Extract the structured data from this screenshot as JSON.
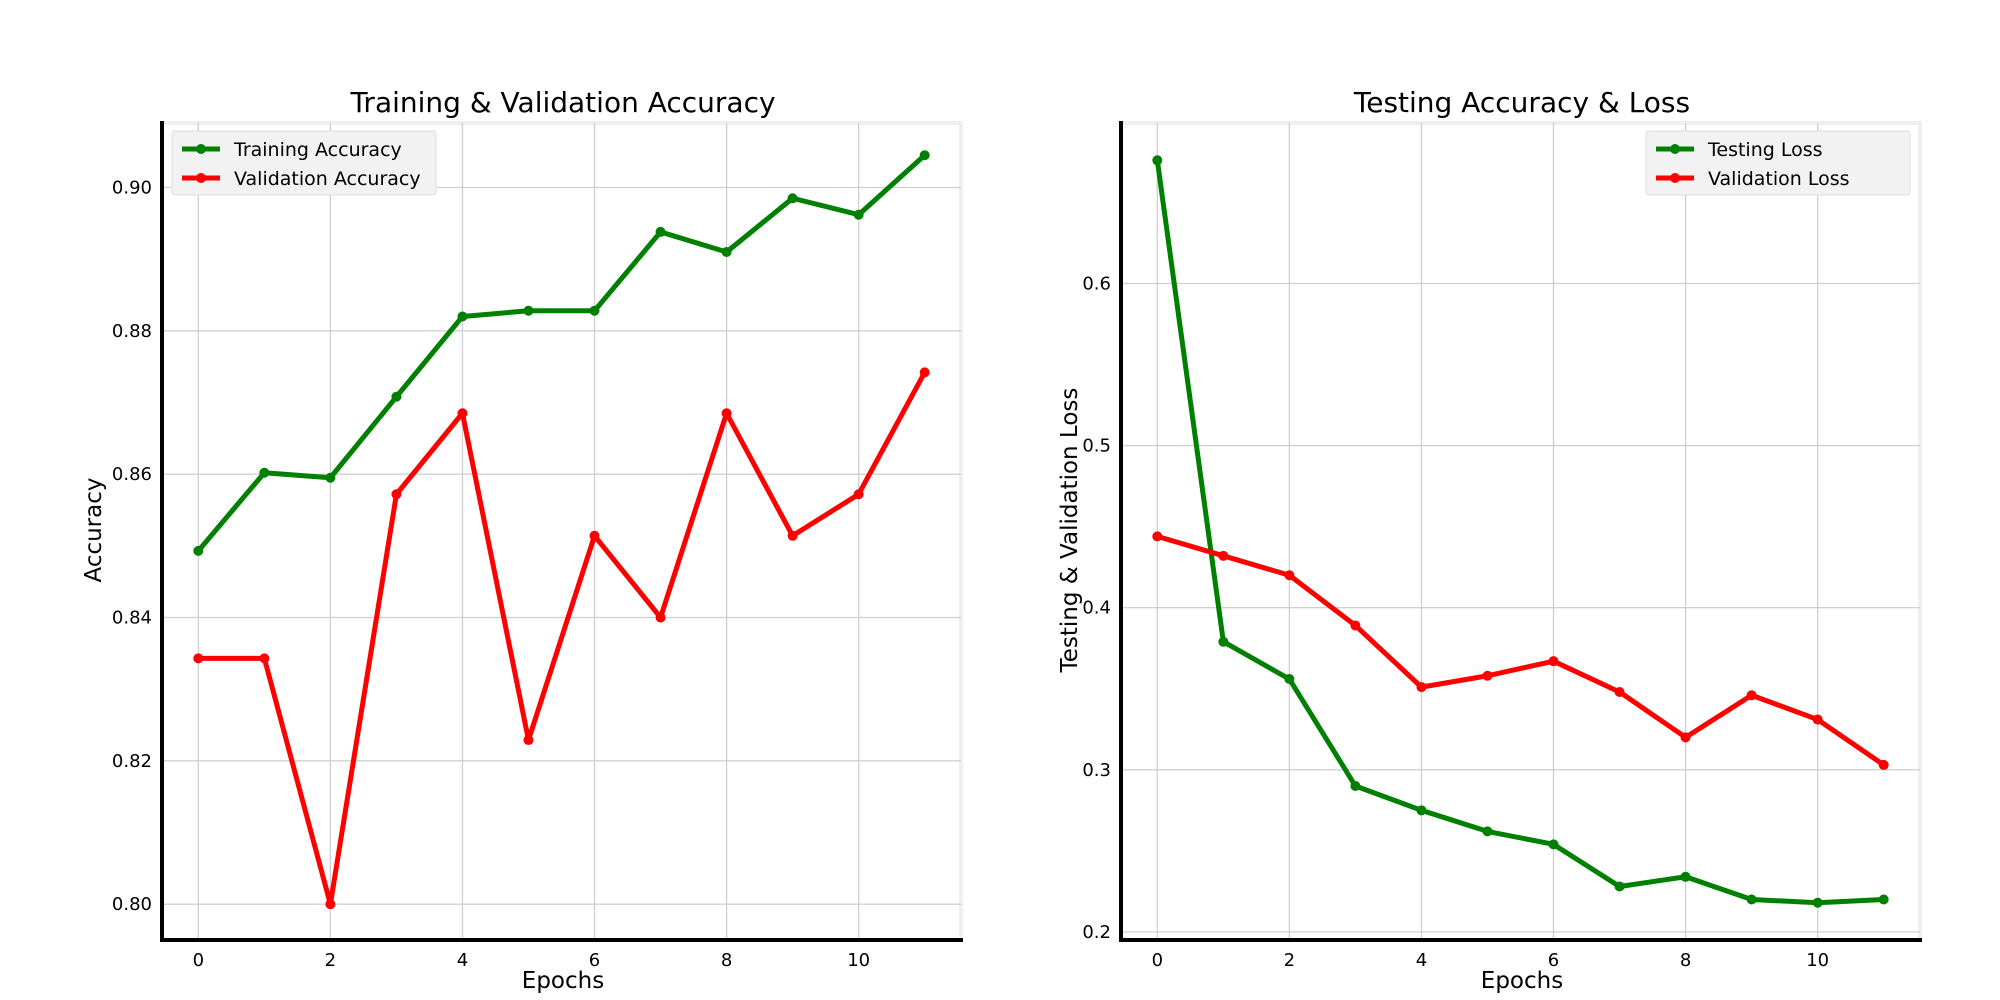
{
  "chart_data": [
    {
      "type": "line",
      "title": "Training & Validation Accuracy",
      "xlabel": "Epochs",
      "ylabel": "Accuracy",
      "x": [
        0,
        1,
        2,
        3,
        4,
        5,
        6,
        7,
        8,
        9,
        10,
        11
      ],
      "xlim": [
        -0.55,
        11.55
      ],
      "ylim": [
        0.795,
        0.909
      ],
      "xticks": [
        0,
        2,
        4,
        6,
        8,
        10
      ],
      "yticks": [
        0.8,
        0.82,
        0.84,
        0.86,
        0.88,
        0.9
      ],
      "ytick_labels": [
        "0.80",
        "0.82",
        "0.84",
        "0.86",
        "0.88",
        "0.90"
      ],
      "grid": true,
      "legend": "top-left",
      "series": [
        {
          "name": "Training Accuracy",
          "color": "#008000",
          "values": [
            0.8493,
            0.8602,
            0.8595,
            0.8708,
            0.882,
            0.8828,
            0.8828,
            0.8938,
            0.891,
            0.8985,
            0.8962,
            0.9045
          ]
        },
        {
          "name": "Validation Accuracy",
          "color": "#ff0000",
          "values": [
            0.8343,
            0.8343,
            0.8,
            0.8572,
            0.8685,
            0.8229,
            0.8514,
            0.84,
            0.8685,
            0.8514,
            0.8572,
            0.8742
          ]
        }
      ]
    },
    {
      "type": "line",
      "title": "Testing Accuracy & Loss",
      "xlabel": "Epochs",
      "ylabel": "Testing & Validation Loss",
      "x": [
        0,
        1,
        2,
        3,
        4,
        5,
        6,
        7,
        8,
        9,
        10,
        11
      ],
      "xlim": [
        -0.55,
        11.55
      ],
      "ylim": [
        0.195,
        0.699
      ],
      "xticks": [
        0,
        2,
        4,
        6,
        8,
        10
      ],
      "yticks": [
        0.2,
        0.3,
        0.4,
        0.5,
        0.6
      ],
      "ytick_labels": [
        "0.2",
        "0.3",
        "0.4",
        "0.5",
        "0.6"
      ],
      "grid": true,
      "legend": "top-right",
      "series": [
        {
          "name": "Testing Loss",
          "color": "#008000",
          "values": [
            0.676,
            0.379,
            0.356,
            0.29,
            0.275,
            0.262,
            0.254,
            0.228,
            0.234,
            0.22,
            0.218,
            0.22
          ]
        },
        {
          "name": "Validation Loss",
          "color": "#ff0000",
          "values": [
            0.444,
            0.432,
            0.42,
            0.389,
            0.351,
            0.358,
            0.367,
            0.348,
            0.32,
            0.346,
            0.331,
            0.303
          ]
        }
      ]
    }
  ]
}
